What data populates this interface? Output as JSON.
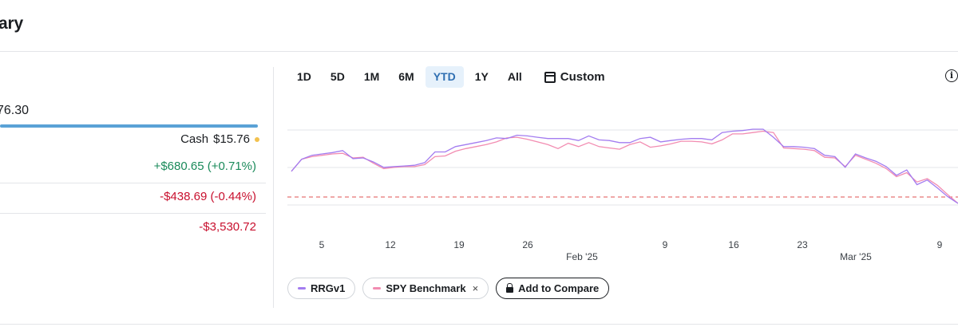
{
  "header": {
    "title": "ary"
  },
  "summary": {
    "total_value": "76.30",
    "cash_label": "Cash",
    "cash_value": "$15.76",
    "stats": [
      {
        "value": "+$680.65 (+0.71%)",
        "tone": "pos"
      },
      {
        "value": "-$438.69 (-0.44%)",
        "tone": "neg"
      },
      {
        "value": "-$3,530.72",
        "tone": "neg"
      }
    ]
  },
  "timeframes": [
    "1D",
    "5D",
    "1M",
    "6M",
    "YTD",
    "1Y",
    "All"
  ],
  "active_timeframe": "YTD",
  "custom_label": "Custom",
  "info_label": "i",
  "legend": {
    "series1": "RRGv1",
    "series2": "SPY Benchmark",
    "close": "×",
    "compare": "Add to Compare"
  },
  "colors": {
    "series1": "#a37cf0",
    "series2": "#f28cb1",
    "baseline": "#e05252",
    "grid": "#e3e5e8"
  },
  "chart_data": {
    "type": "line",
    "x_tick_labels": [
      "5",
      "12",
      "19",
      "26",
      "9",
      "16",
      "23",
      "9"
    ],
    "month_labels": [
      "Feb '25",
      "Mar '25"
    ],
    "baseline_dashed": true,
    "series": [
      {
        "name": "RRGv1",
        "values": [
          0.48,
          0.66,
          0.72,
          0.74,
          0.76,
          0.79,
          0.67,
          0.68,
          0.62,
          0.54,
          0.55,
          0.56,
          0.57,
          0.61,
          0.77,
          0.77,
          0.85,
          0.88,
          0.91,
          0.94,
          0.98,
          0.97,
          1.02,
          1.01,
          0.99,
          0.97,
          0.97,
          0.97,
          0.94,
          1.01,
          0.95,
          0.94,
          0.91,
          0.91,
          0.97,
          0.99,
          0.92,
          0.94,
          0.96,
          0.97,
          0.97,
          0.95,
          1.06,
          1.08,
          1.09,
          1.11,
          1.11,
          0.99,
          0.85,
          0.85,
          0.84,
          0.82,
          0.72,
          0.7,
          0.54,
          0.74,
          0.68,
          0.63,
          0.55,
          0.42,
          0.5,
          0.28,
          0.35,
          0.23,
          0.1,
          0.0
        ]
      },
      {
        "name": "SPY Benchmark",
        "values": [
          0.48,
          0.66,
          0.7,
          0.72,
          0.74,
          0.75,
          0.68,
          0.69,
          0.6,
          0.52,
          0.54,
          0.55,
          0.55,
          0.58,
          0.7,
          0.71,
          0.78,
          0.82,
          0.85,
          0.88,
          0.92,
          0.98,
          0.99,
          0.96,
          0.92,
          0.88,
          0.82,
          0.9,
          0.85,
          0.91,
          0.85,
          0.83,
          0.81,
          0.88,
          0.92,
          0.84,
          0.86,
          0.89,
          0.93,
          0.93,
          0.92,
          0.89,
          0.95,
          1.04,
          1.04,
          1.06,
          1.08,
          1.06,
          0.83,
          0.82,
          0.81,
          0.79,
          0.69,
          0.68,
          0.55,
          0.72,
          0.66,
          0.6,
          0.52,
          0.4,
          0.46,
          0.32,
          0.37,
          0.27,
          0.13,
          0.0
        ]
      }
    ]
  }
}
